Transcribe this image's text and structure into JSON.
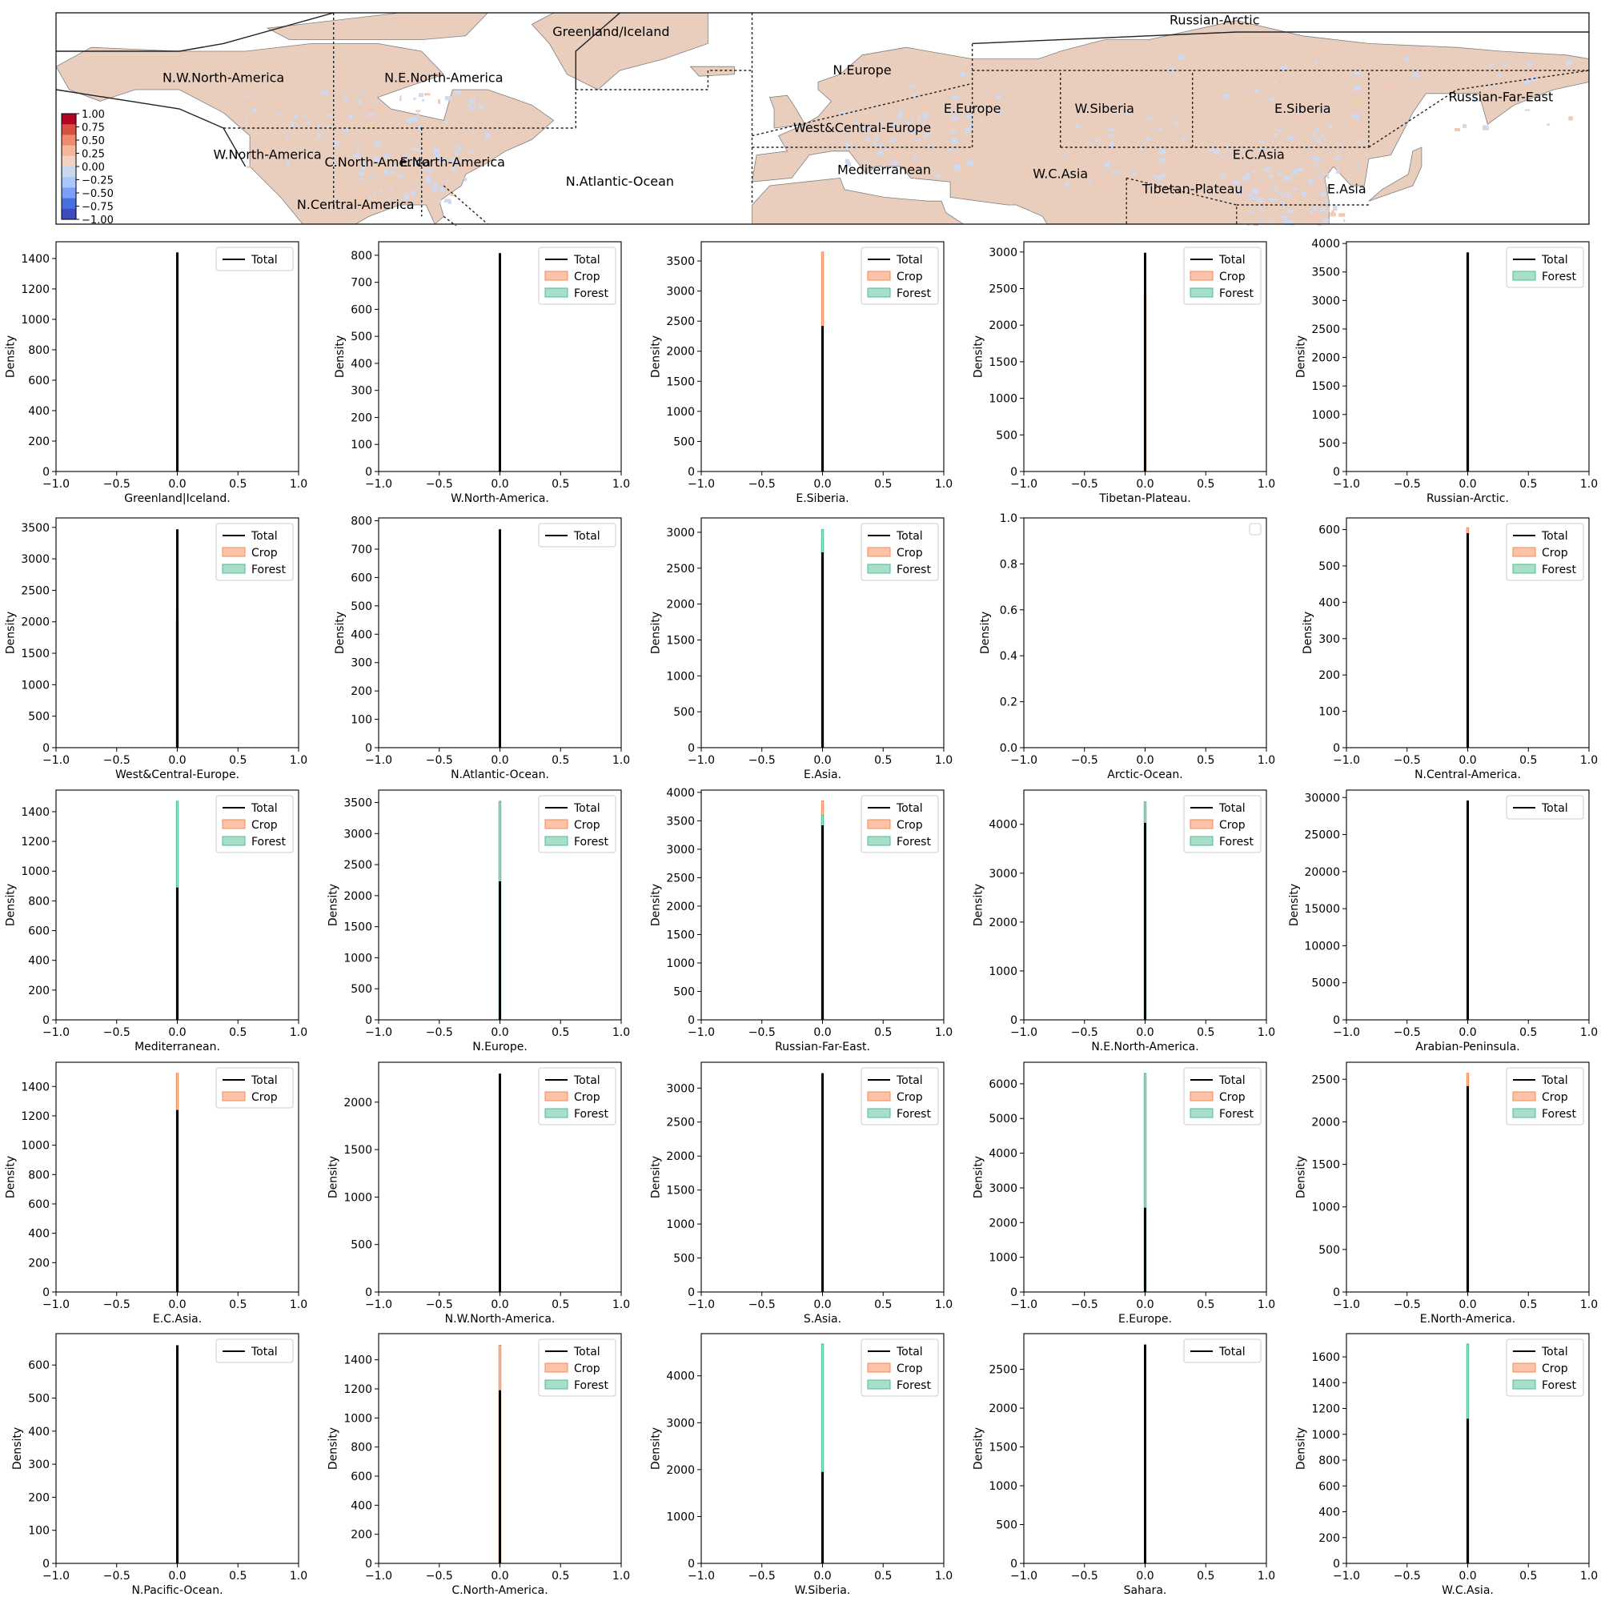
{
  "map": {
    "regions": [
      {
        "name": "Greenland/Iceland",
        "anchor": [
          -42,
          74
        ]
      },
      {
        "name": "Russian-Arctic",
        "anchor": [
          95,
          77
        ]
      },
      {
        "name": "N.W.North-America",
        "anchor": [
          -130,
          62
        ]
      },
      {
        "name": "N.E.North-America",
        "anchor": [
          -80,
          62
        ]
      },
      {
        "name": "N.Europe",
        "anchor": [
          15,
          64
        ]
      },
      {
        "name": "E.Europe",
        "anchor": [
          40,
          54
        ]
      },
      {
        "name": "W.Siberia",
        "anchor": [
          70,
          54
        ]
      },
      {
        "name": "E.Siberia",
        "anchor": [
          115,
          54
        ]
      },
      {
        "name": "Russian-Far-East",
        "anchor": [
          160,
          57
        ]
      },
      {
        "name": "West&Central-Europe",
        "anchor": [
          15,
          49
        ]
      },
      {
        "name": "W.North-America",
        "anchor": [
          -120,
          42
        ]
      },
      {
        "name": "C.North-America",
        "anchor": [
          -95,
          40
        ]
      },
      {
        "name": "E.North-America",
        "anchor": [
          -78,
          40
        ]
      },
      {
        "name": "E.C.Asia",
        "anchor": [
          105,
          42
        ]
      },
      {
        "name": "Mediterranean",
        "anchor": [
          20,
          38
        ]
      },
      {
        "name": "W.C.Asia",
        "anchor": [
          60,
          37
        ]
      },
      {
        "name": "N.Atlantic-Ocean",
        "anchor": [
          -40,
          35
        ]
      },
      {
        "name": "Tibetan-Plateau",
        "anchor": [
          90,
          33
        ]
      },
      {
        "name": "E.Asia",
        "anchor": [
          125,
          33
        ]
      },
      {
        "name": "N.Central-America",
        "anchor": [
          -100,
          29
        ]
      }
    ],
    "colorbar": {
      "ticks": [
        "1.00",
        "0.75",
        "0.50",
        "0.25",
        "0.00",
        "−0.25",
        "−0.50",
        "−0.75",
        "−1.00"
      ],
      "colors": [
        "#b40426",
        "#d6513f",
        "#f08a6e",
        "#f6b69b",
        "#efd2c3",
        "#cad8ee",
        "#a9c6fd",
        "#7b9ff9",
        "#4a6fe3",
        "#3b4cc0"
      ]
    },
    "colors": {
      "land": "#e9cdbd",
      "water": "#ffffff",
      "coast": "#808080",
      "boundary": "#222222"
    }
  },
  "colors": {
    "total": "#000000",
    "crop": "#f48a58",
    "crop_fill": "#fcc3a8",
    "forest": "#4cbc94",
    "forest_fill": "#a8dfc9"
  },
  "axis_labels": {
    "y": "Density"
  },
  "legend_labels": {
    "total": "Total",
    "crop": "Crop",
    "forest": "Forest"
  },
  "chart_data": [
    {
      "type": "histogram",
      "xlabel": "Greenland|Iceland.",
      "xlim": [
        -1,
        1
      ],
      "ylim": [
        0,
        1510
      ],
      "yticks": [
        0,
        200,
        400,
        600,
        800,
        1000,
        1200,
        1400
      ],
      "legend": [
        "Total"
      ],
      "peaks": {
        "total": 1440
      }
    },
    {
      "type": "histogram",
      "xlabel": "W.North-America.",
      "xlim": [
        -1,
        1
      ],
      "ylim": [
        0,
        850
      ],
      "yticks": [
        0,
        100,
        200,
        300,
        400,
        500,
        600,
        700,
        800
      ],
      "legend": [
        "Total",
        "Crop",
        "Forest"
      ],
      "peaks": {
        "total": 808,
        "crop": 0,
        "forest": 0
      }
    },
    {
      "type": "histogram",
      "xlabel": "E.Siberia.",
      "xlim": [
        -1,
        1
      ],
      "ylim": [
        0,
        3820
      ],
      "yticks": [
        0,
        500,
        1000,
        1500,
        2000,
        2500,
        3000,
        3500
      ],
      "legend": [
        "Total",
        "Crop",
        "Forest"
      ],
      "peaks": {
        "total": 2420,
        "crop": 3650,
        "forest": 0
      }
    },
    {
      "type": "histogram",
      "xlabel": "Tibetan-Plateau.",
      "xlim": [
        -1,
        1
      ],
      "ylim": [
        0,
        3140
      ],
      "yticks": [
        0,
        500,
        1000,
        1500,
        2000,
        2500,
        3000
      ],
      "legend": [
        "Total",
        "Crop",
        "Forest"
      ],
      "peaks": {
        "total": 2990,
        "crop": 2400,
        "forest": 0
      }
    },
    {
      "type": "histogram",
      "xlabel": "Russian-Arctic.",
      "xlim": [
        -1,
        1
      ],
      "ylim": [
        0,
        4030
      ],
      "yticks": [
        0,
        500,
        1000,
        1500,
        2000,
        2500,
        3000,
        3500,
        4000
      ],
      "legend": [
        "Total",
        "Forest"
      ],
      "peaks": {
        "total": 3840,
        "forest": 3840
      }
    },
    {
      "type": "histogram",
      "xlabel": "West&Central-Europe.",
      "xlim": [
        -1,
        1
      ],
      "ylim": [
        0,
        3650
      ],
      "yticks": [
        0,
        500,
        1000,
        1500,
        2000,
        2500,
        3000,
        3500
      ],
      "legend": [
        "Total",
        "Crop",
        "Forest"
      ],
      "peaks": {
        "total": 3470,
        "crop": 2200,
        "forest": 2000
      }
    },
    {
      "type": "histogram",
      "xlabel": "N.Atlantic-Ocean.",
      "xlim": [
        -1,
        1
      ],
      "ylim": [
        0,
        810
      ],
      "yticks": [
        0,
        100,
        200,
        300,
        400,
        500,
        600,
        700,
        800
      ],
      "legend": [
        "Total"
      ],
      "peaks": {
        "total": 770
      }
    },
    {
      "type": "histogram",
      "xlabel": "E.Asia.",
      "xlim": [
        -1,
        1
      ],
      "ylim": [
        0,
        3200
      ],
      "yticks": [
        0,
        500,
        1000,
        1500,
        2000,
        2500,
        3000
      ],
      "legend": [
        "Total",
        "Crop",
        "Forest"
      ],
      "peaks": {
        "total": 2720,
        "crop": 2900,
        "forest": 3040
      }
    },
    {
      "type": "histogram",
      "xlabel": "Arctic-Ocean.",
      "xlim": [
        -1,
        1
      ],
      "ylim": [
        0,
        1
      ],
      "yticks": [
        "0.0",
        "0.2",
        "0.4",
        "0.6",
        "0.8",
        "1.0"
      ],
      "legend": [],
      "peaks": {}
    },
    {
      "type": "histogram",
      "xlabel": "N.Central-America.",
      "xlim": [
        -1,
        1
      ],
      "ylim": [
        0,
        632
      ],
      "yticks": [
        0,
        100,
        200,
        300,
        400,
        500,
        600
      ],
      "legend": [
        "Total",
        "Crop",
        "Forest"
      ],
      "peaks": {
        "total": 590,
        "crop": 605,
        "forest": 0
      }
    },
    {
      "type": "histogram",
      "xlabel": "Mediterranean.",
      "xlim": [
        -1,
        1
      ],
      "ylim": [
        0,
        1545
      ],
      "yticks": [
        0,
        200,
        400,
        600,
        800,
        1000,
        1200,
        1400
      ],
      "legend": [
        "Total",
        "Crop",
        "Forest"
      ],
      "peaks": {
        "total": 890,
        "crop": 0,
        "forest": 1470
      }
    },
    {
      "type": "histogram",
      "xlabel": "N.Europe.",
      "xlim": [
        -1,
        1
      ],
      "ylim": [
        0,
        3700
      ],
      "yticks": [
        0,
        500,
        1000,
        1500,
        2000,
        2500,
        3000,
        3500
      ],
      "legend": [
        "Total",
        "Crop",
        "Forest"
      ],
      "peaks": {
        "total": 2230,
        "crop": 0,
        "forest": 3520
      }
    },
    {
      "type": "histogram",
      "xlabel": "Russian-Far-East.",
      "xlim": [
        -1,
        1
      ],
      "ylim": [
        0,
        4040
      ],
      "yticks": [
        0,
        500,
        1000,
        1500,
        2000,
        2500,
        3000,
        3500,
        4000
      ],
      "legend": [
        "Total",
        "Crop",
        "Forest"
      ],
      "peaks": {
        "total": 3420,
        "crop": 3850,
        "forest": 3600
      }
    },
    {
      "type": "histogram",
      "xlabel": "N.E.North-America.",
      "xlim": [
        -1,
        1
      ],
      "ylim": [
        0,
        4700
      ],
      "yticks": [
        0,
        1000,
        2000,
        3000,
        4000
      ],
      "legend": [
        "Total",
        "Crop",
        "Forest"
      ],
      "peaks": {
        "total": 4030,
        "crop": 0,
        "forest": 4460
      }
    },
    {
      "type": "histogram",
      "xlabel": "Arabian-Peninsula.",
      "xlim": [
        -1,
        1
      ],
      "ylim": [
        0,
        31000
      ],
      "yticks": [
        0,
        5000,
        10000,
        15000,
        20000,
        25000,
        30000
      ],
      "legend": [
        "Total"
      ],
      "peaks": {
        "total": 29600
      }
    },
    {
      "type": "histogram",
      "xlabel": "E.C.Asia.",
      "xlim": [
        -1,
        1
      ],
      "ylim": [
        0,
        1565
      ],
      "yticks": [
        0,
        200,
        400,
        600,
        800,
        1000,
        1200,
        1400
      ],
      "legend": [
        "Total",
        "Crop"
      ],
      "peaks": {
        "total": 1240,
        "crop": 1490
      }
    },
    {
      "type": "histogram",
      "xlabel": "N.W.North-America.",
      "xlim": [
        -1,
        1
      ],
      "ylim": [
        0,
        2420
      ],
      "yticks": [
        0,
        500,
        1000,
        1500,
        2000
      ],
      "legend": [
        "Total",
        "Crop",
        "Forest"
      ],
      "peaks": {
        "total": 2300,
        "crop": 0,
        "forest": 0
      }
    },
    {
      "type": "histogram",
      "xlabel": "S.Asia.",
      "xlim": [
        -1,
        1
      ],
      "ylim": [
        0,
        3380
      ],
      "yticks": [
        0,
        500,
        1000,
        1500,
        2000,
        2500,
        3000
      ],
      "legend": [
        "Total",
        "Crop",
        "Forest"
      ],
      "peaks": {
        "total": 3220,
        "crop": 0,
        "forest": 0
      }
    },
    {
      "type": "histogram",
      "xlabel": "E.Europe.",
      "xlim": [
        -1,
        1
      ],
      "ylim": [
        0,
        6620
      ],
      "yticks": [
        0,
        1000,
        2000,
        3000,
        4000,
        5000,
        6000
      ],
      "legend": [
        "Total",
        "Crop",
        "Forest"
      ],
      "peaks": {
        "total": 2430,
        "crop": 0,
        "forest": 6300
      }
    },
    {
      "type": "histogram",
      "xlabel": "E.North-America.",
      "xlim": [
        -1,
        1
      ],
      "ylim": [
        0,
        2700
      ],
      "yticks": [
        0,
        500,
        1000,
        1500,
        2000,
        2500
      ],
      "legend": [
        "Total",
        "Crop",
        "Forest"
      ],
      "peaks": {
        "total": 2420,
        "crop": 2570,
        "forest": 0
      }
    },
    {
      "type": "histogram",
      "xlabel": "N.Pacific-Ocean.",
      "xlim": [
        -1,
        1
      ],
      "ylim": [
        0,
        695
      ],
      "yticks": [
        0,
        100,
        200,
        300,
        400,
        500,
        600
      ],
      "legend": [
        "Total"
      ],
      "peaks": {
        "total": 660
      }
    },
    {
      "type": "histogram",
      "xlabel": "C.North-America.",
      "xlim": [
        -1,
        1
      ],
      "ylim": [
        0,
        1580
      ],
      "yticks": [
        0,
        200,
        400,
        600,
        800,
        1000,
        1200,
        1400
      ],
      "legend": [
        "Total",
        "Crop",
        "Forest"
      ],
      "peaks": {
        "total": 1190,
        "crop": 1500,
        "forest": 0
      }
    },
    {
      "type": "histogram",
      "xlabel": "W.Siberia.",
      "xlim": [
        -1,
        1
      ],
      "ylim": [
        0,
        4900
      ],
      "yticks": [
        0,
        1000,
        2000,
        3000,
        4000
      ],
      "legend": [
        "Total",
        "Crop",
        "Forest"
      ],
      "peaks": {
        "total": 1950,
        "crop": 0,
        "forest": 4680
      }
    },
    {
      "type": "histogram",
      "xlabel": "Sahara.",
      "xlim": [
        -1,
        1
      ],
      "ylim": [
        0,
        2960
      ],
      "yticks": [
        0,
        500,
        1000,
        1500,
        2000,
        2500
      ],
      "legend": [
        "Total"
      ],
      "peaks": {
        "total": 2820
      }
    },
    {
      "type": "histogram",
      "xlabel": "W.C.Asia.",
      "xlim": [
        -1,
        1
      ],
      "ylim": [
        0,
        1780
      ],
      "yticks": [
        0,
        200,
        400,
        600,
        800,
        1000,
        1200,
        1400,
        1600
      ],
      "legend": [
        "Total",
        "Crop",
        "Forest"
      ],
      "peaks": {
        "total": 1120,
        "crop": 0,
        "forest": 1700
      }
    }
  ]
}
